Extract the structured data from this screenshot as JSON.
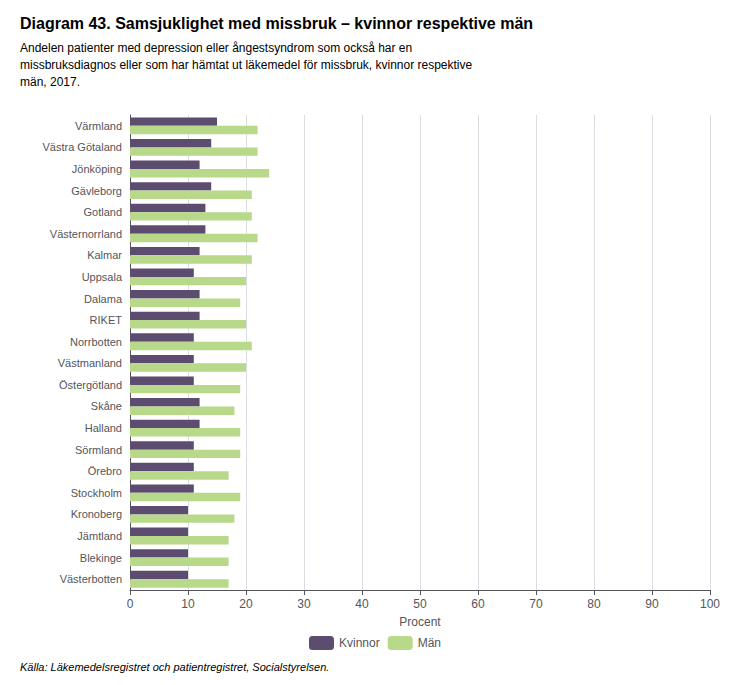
{
  "chart_data": {
    "type": "bar",
    "orientation": "horizontal",
    "title": "Diagram 43. Samsjuklighet med missbruk – kvinnor respektive män",
    "subtitle": "Andelen patienter med depression eller ångestsyndrom som också har en\nmissbruksdiagnos eller som har hämtat ut läkemedel för missbruk, kvinnor respektive\nmän, 2017.",
    "annotations": [
      "Källa: Läkemedelsregistret och patientregistret, Socialstyrelsen."
    ],
    "xlabel": "Procent",
    "categories": [
      "Värmland",
      "Västra Götaland",
      "Jönköping",
      "Gävleborg",
      "Gotland",
      "Västernorrland",
      "Kalmar",
      "Uppsala",
      "Dalama",
      "RIKET",
      "Norrbotten",
      "Västmanland",
      "Östergötland",
      "Skåne",
      "Halland",
      "Sörmland",
      "Örebro",
      "Stockholm",
      "Kronoberg",
      "Jämtland",
      "Blekinge",
      "Västerbotten"
    ],
    "series": [
      {
        "name": "Kvinnor",
        "color": "#5c4d70",
        "values": [
          15,
          14,
          12,
          14,
          13,
          13,
          12,
          11,
          12,
          12,
          11,
          11,
          11,
          12,
          12,
          11,
          11,
          11,
          10,
          10,
          10,
          10
        ]
      },
      {
        "name": "Män",
        "color": "#b8d98a",
        "values": [
          22,
          22,
          24,
          21,
          21,
          22,
          21,
          20,
          19,
          20,
          21,
          20,
          19,
          18,
          19,
          19,
          17,
          19,
          18,
          17,
          17,
          17
        ]
      }
    ],
    "xlim": [
      0,
      100
    ],
    "xticks": [
      0,
      10,
      20,
      30,
      40,
      50,
      60,
      70,
      80,
      90,
      100
    ],
    "grid": true,
    "legend": "bottom"
  }
}
